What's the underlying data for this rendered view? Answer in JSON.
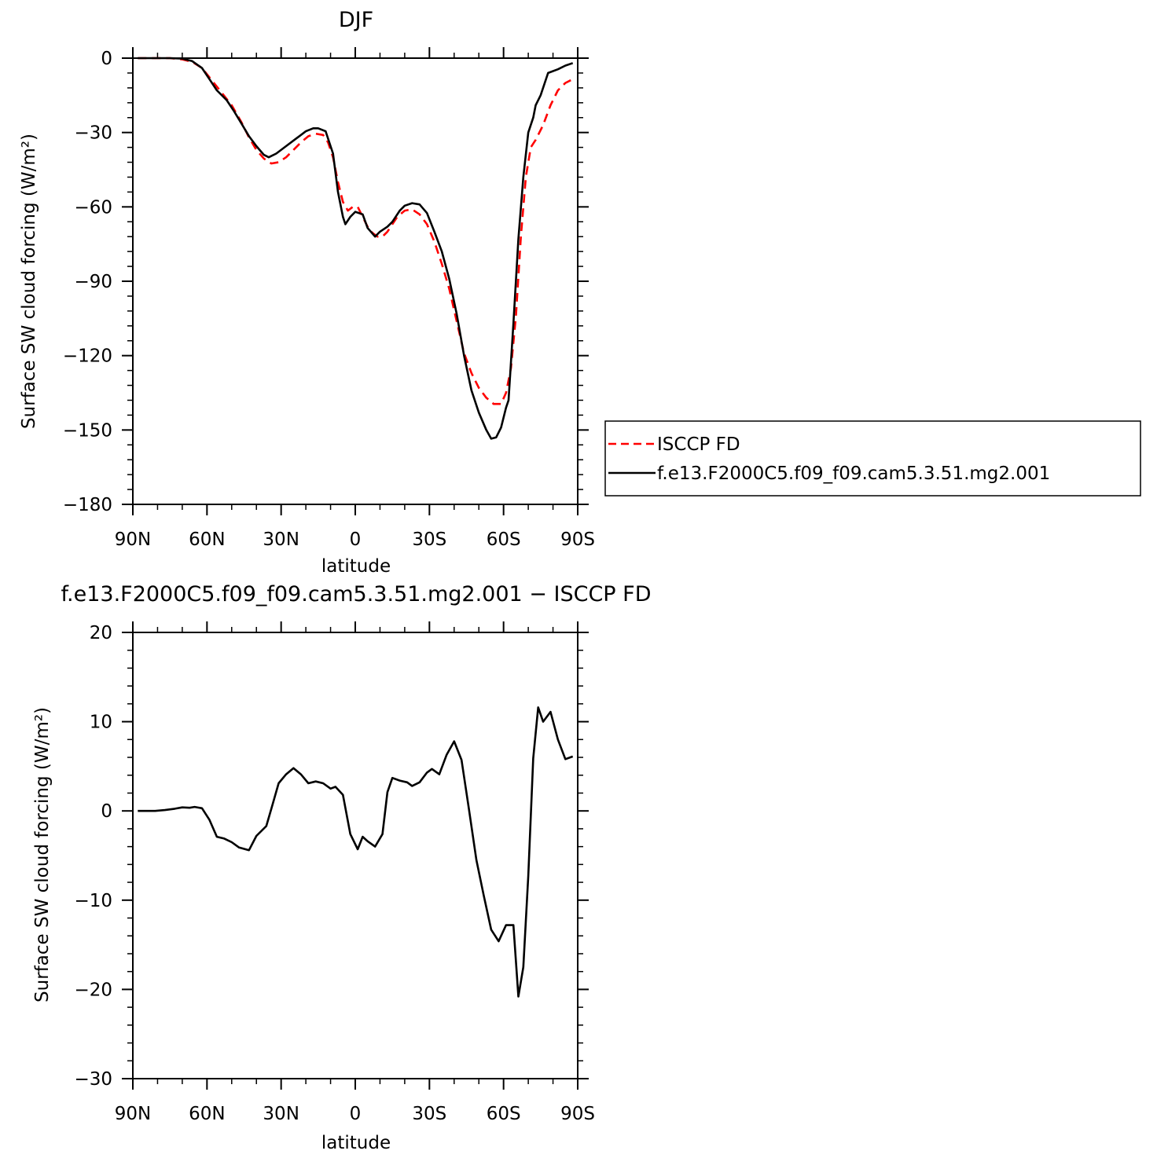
{
  "chart_data": [
    {
      "type": "line",
      "title": "DJF",
      "xlabel": "latitude",
      "ylabel": "Surface SW cloud forcing (W/m²)",
      "xlim": [
        90,
        -90
      ],
      "ylim": [
        -180,
        0
      ],
      "x_ticks": [
        90,
        60,
        30,
        0,
        -30,
        -60,
        -90
      ],
      "x_tick_labels": [
        "90N",
        "60N",
        "30N",
        "0",
        "30S",
        "60S",
        "90S"
      ],
      "y_ticks": [
        0,
        -30,
        -60,
        -90,
        -120,
        -150,
        -180
      ],
      "y_tick_labels": [
        "0",
        "−30",
        "−60",
        "−90",
        "−120",
        "−150",
        "−180"
      ],
      "grid": false,
      "legend_position": "right",
      "series": [
        {
          "name": "ISCCP FD",
          "color": "#ff0000",
          "style": "dashed",
          "points": [
            [
              88,
              0
            ],
            [
              85,
              0
            ],
            [
              80,
              0
            ],
            [
              75,
              0
            ],
            [
              70,
              -0.5
            ],
            [
              66,
              -1.5
            ],
            [
              62,
              -4
            ],
            [
              58,
              -9
            ],
            [
              54,
              -14
            ],
            [
              50,
              -19
            ],
            [
              46,
              -26
            ],
            [
              43,
              -32
            ],
            [
              40,
              -37
            ],
            [
              37,
              -40.5
            ],
            [
              34,
              -42.5
            ],
            [
              31,
              -42
            ],
            [
              28,
              -40
            ],
            [
              25,
              -37
            ],
            [
              22,
              -34
            ],
            [
              19,
              -31.5
            ],
            [
              16,
              -30.5
            ],
            [
              13,
              -31
            ],
            [
              11,
              -34
            ],
            [
              9,
              -40
            ],
            [
              7,
              -50
            ],
            [
              5,
              -58
            ],
            [
              3,
              -61.5
            ],
            [
              1,
              -60
            ],
            [
              -1,
              -60
            ],
            [
              -3,
              -64
            ],
            [
              -5,
              -68
            ],
            [
              -7,
              -70.5
            ],
            [
              -9,
              -72
            ],
            [
              -11,
              -72
            ],
            [
              -13,
              -70
            ],
            [
              -15,
              -67
            ],
            [
              -17,
              -64
            ],
            [
              -20,
              -61.5
            ],
            [
              -23,
              -61
            ],
            [
              -26,
              -63
            ],
            [
              -29,
              -67
            ],
            [
              -32,
              -74
            ],
            [
              -35,
              -83
            ],
            [
              -38,
              -93
            ],
            [
              -41,
              -106
            ],
            [
              -44,
              -119
            ],
            [
              -47,
              -127
            ],
            [
              -50,
              -133
            ],
            [
              -53,
              -137
            ],
            [
              -56,
              -139.5
            ],
            [
              -59,
              -139.5
            ],
            [
              -61,
              -135
            ],
            [
              -63,
              -125
            ],
            [
              -65,
              -104
            ],
            [
              -67,
              -72
            ],
            [
              -69,
              -48
            ],
            [
              -71,
              -36
            ],
            [
              -73,
              -33
            ],
            [
              -76,
              -27
            ],
            [
              -79,
              -19
            ],
            [
              -82,
              -13
            ],
            [
              -85,
              -10
            ],
            [
              -88,
              -8.5
            ]
          ]
        },
        {
          "name": "f.e13.F2000C5.f09_f09.cam5.3.51.mg2.001",
          "color": "#000000",
          "style": "solid",
          "points": [
            [
              88,
              0
            ],
            [
              85,
              0
            ],
            [
              80,
              0
            ],
            [
              75,
              0
            ],
            [
              70,
              -0.2
            ],
            [
              66,
              -1.2
            ],
            [
              62,
              -4
            ],
            [
              59,
              -8.5
            ],
            [
              56,
              -13
            ],
            [
              52,
              -17
            ],
            [
              49,
              -21.5
            ],
            [
              46,
              -26.5
            ],
            [
              43,
              -31.5
            ],
            [
              40,
              -35.5
            ],
            [
              37,
              -39
            ],
            [
              35,
              -40
            ],
            [
              32,
              -38.5
            ],
            [
              28,
              -35.5
            ],
            [
              24,
              -32.5
            ],
            [
              20,
              -29.5
            ],
            [
              17,
              -28.3
            ],
            [
              15,
              -28.3
            ],
            [
              12,
              -29.5
            ],
            [
              9,
              -38.5
            ],
            [
              7,
              -54
            ],
            [
              5,
              -64
            ],
            [
              4,
              -67
            ],
            [
              2,
              -64
            ],
            [
              0,
              -62
            ],
            [
              -3,
              -63
            ],
            [
              -5,
              -68.5
            ],
            [
              -8,
              -72
            ],
            [
              -10,
              -70
            ],
            [
              -13,
              -68
            ],
            [
              -15,
              -66
            ],
            [
              -18,
              -61.5
            ],
            [
              -20,
              -59.5
            ],
            [
              -23,
              -58.5
            ],
            [
              -26,
              -59
            ],
            [
              -29,
              -62.5
            ],
            [
              -32,
              -70
            ],
            [
              -35,
              -78
            ],
            [
              -38,
              -89
            ],
            [
              -41,
              -103
            ],
            [
              -44,
              -120
            ],
            [
              -47,
              -134
            ],
            [
              -50,
              -143
            ],
            [
              -53,
              -150
            ],
            [
              -55,
              -153.5
            ],
            [
              -57,
              -153
            ],
            [
              -59,
              -149
            ],
            [
              -61,
              -141
            ],
            [
              -62,
              -138
            ],
            [
              -64,
              -107
            ],
            [
              -66,
              -73
            ],
            [
              -68,
              -48
            ],
            [
              -70,
              -30
            ],
            [
              -72,
              -24
            ],
            [
              -73,
              -19
            ],
            [
              -75,
              -15
            ],
            [
              -78,
              -6
            ],
            [
              -82,
              -4.5
            ],
            [
              -85,
              -3
            ],
            [
              -88,
              -2
            ]
          ]
        }
      ]
    },
    {
      "type": "line",
      "title": "f.e13.F2000C5.f09_f09.cam5.3.51.mg2.001 − ISCCP FD",
      "xlabel": "latitude",
      "ylabel": "Surface SW cloud forcing (W/m²)",
      "xlim": [
        90,
        -90
      ],
      "ylim": [
        -30,
        20
      ],
      "x_ticks": [
        90,
        60,
        30,
        0,
        -30,
        -60,
        -90
      ],
      "x_tick_labels": [
        "90N",
        "60N",
        "30N",
        "0",
        "30S",
        "60S",
        "90S"
      ],
      "y_ticks": [
        20,
        10,
        0,
        -10,
        -20,
        -30
      ],
      "y_tick_labels": [
        "20",
        "10",
        "0",
        "−10",
        "−20",
        "−30"
      ],
      "grid": false,
      "series": [
        {
          "color": "#000000",
          "style": "solid",
          "points": [
            [
              88,
              0
            ],
            [
              81,
              0
            ],
            [
              77,
              0.1
            ],
            [
              73,
              0.25
            ],
            [
              70,
              0.4
            ],
            [
              67,
              0.35
            ],
            [
              65,
              0.45
            ],
            [
              62,
              0.3
            ],
            [
              59,
              -1
            ],
            [
              56,
              -2.9
            ],
            [
              53,
              -3.1
            ],
            [
              50,
              -3.5
            ],
            [
              47,
              -4.1
            ],
            [
              43,
              -4.4
            ],
            [
              40,
              -2.8
            ],
            [
              36,
              -1.7
            ],
            [
              34,
              0.2
            ],
            [
              31,
              3.1
            ],
            [
              28,
              4.1
            ],
            [
              25,
              4.8
            ],
            [
              22,
              4.1
            ],
            [
              19,
              3.1
            ],
            [
              16,
              3.3
            ],
            [
              13,
              3.1
            ],
            [
              10,
              2.5
            ],
            [
              8,
              2.7
            ],
            [
              5,
              1.8
            ],
            [
              2,
              -2.6
            ],
            [
              -1,
              -4.3
            ],
            [
              -3,
              -2.9
            ],
            [
              -5,
              -3.4
            ],
            [
              -8,
              -4.0
            ],
            [
              -11,
              -2.6
            ],
            [
              -13,
              2.1
            ],
            [
              -15,
              3.7
            ],
            [
              -18,
              3.4
            ],
            [
              -21,
              3.2
            ],
            [
              -23,
              2.8
            ],
            [
              -26,
              3.2
            ],
            [
              -29,
              4.3
            ],
            [
              -31,
              4.7
            ],
            [
              -34,
              4.1
            ],
            [
              -37,
              6.3
            ],
            [
              -40,
              7.8
            ],
            [
              -43,
              5.7
            ],
            [
              -46,
              0.2
            ],
            [
              -49,
              -5.5
            ],
            [
              -52,
              -9.5
            ],
            [
              -55,
              -13.3
            ],
            [
              -58,
              -14.6
            ],
            [
              -61,
              -12.8
            ],
            [
              -64,
              -12.8
            ],
            [
              -66,
              -20.8
            ],
            [
              -68,
              -17.5
            ],
            [
              -70,
              -7.3
            ],
            [
              -72,
              5.9
            ],
            [
              -74,
              11.6
            ],
            [
              -76,
              10
            ],
            [
              -79,
              11.1
            ],
            [
              -82,
              8
            ],
            [
              -85,
              5.8
            ],
            [
              -88,
              6.1
            ]
          ]
        }
      ]
    }
  ]
}
